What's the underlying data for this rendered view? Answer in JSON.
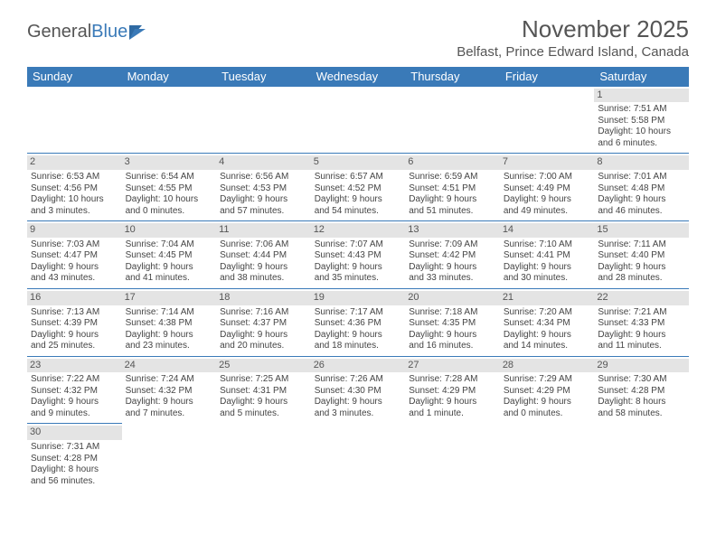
{
  "brand": {
    "part1": "General",
    "part2": "Blue"
  },
  "title": "November 2025",
  "location": "Belfast, Prince Edward Island, Canada",
  "colors": {
    "header_bg": "#3a7ab8",
    "header_text": "#ffffff",
    "daynum_bg": "#e4e4e4",
    "border": "#3a7ab8",
    "text": "#444444",
    "background": "#ffffff"
  },
  "typography": {
    "title_fontsize": 26,
    "location_fontsize": 15,
    "header_fontsize": 13,
    "daynum_fontsize": 11,
    "cell_fontsize": 10
  },
  "weekdays": [
    "Sunday",
    "Monday",
    "Tuesday",
    "Wednesday",
    "Thursday",
    "Friday",
    "Saturday"
  ],
  "weeks": [
    [
      null,
      null,
      null,
      null,
      null,
      null,
      {
        "day": "1",
        "sunrise": "Sunrise: 7:51 AM",
        "sunset": "Sunset: 5:58 PM",
        "daylight1": "Daylight: 10 hours",
        "daylight2": "and 6 minutes."
      }
    ],
    [
      {
        "day": "2",
        "sunrise": "Sunrise: 6:53 AM",
        "sunset": "Sunset: 4:56 PM",
        "daylight1": "Daylight: 10 hours",
        "daylight2": "and 3 minutes."
      },
      {
        "day": "3",
        "sunrise": "Sunrise: 6:54 AM",
        "sunset": "Sunset: 4:55 PM",
        "daylight1": "Daylight: 10 hours",
        "daylight2": "and 0 minutes."
      },
      {
        "day": "4",
        "sunrise": "Sunrise: 6:56 AM",
        "sunset": "Sunset: 4:53 PM",
        "daylight1": "Daylight: 9 hours",
        "daylight2": "and 57 minutes."
      },
      {
        "day": "5",
        "sunrise": "Sunrise: 6:57 AM",
        "sunset": "Sunset: 4:52 PM",
        "daylight1": "Daylight: 9 hours",
        "daylight2": "and 54 minutes."
      },
      {
        "day": "6",
        "sunrise": "Sunrise: 6:59 AM",
        "sunset": "Sunset: 4:51 PM",
        "daylight1": "Daylight: 9 hours",
        "daylight2": "and 51 minutes."
      },
      {
        "day": "7",
        "sunrise": "Sunrise: 7:00 AM",
        "sunset": "Sunset: 4:49 PM",
        "daylight1": "Daylight: 9 hours",
        "daylight2": "and 49 minutes."
      },
      {
        "day": "8",
        "sunrise": "Sunrise: 7:01 AM",
        "sunset": "Sunset: 4:48 PM",
        "daylight1": "Daylight: 9 hours",
        "daylight2": "and 46 minutes."
      }
    ],
    [
      {
        "day": "9",
        "sunrise": "Sunrise: 7:03 AM",
        "sunset": "Sunset: 4:47 PM",
        "daylight1": "Daylight: 9 hours",
        "daylight2": "and 43 minutes."
      },
      {
        "day": "10",
        "sunrise": "Sunrise: 7:04 AM",
        "sunset": "Sunset: 4:45 PM",
        "daylight1": "Daylight: 9 hours",
        "daylight2": "and 41 minutes."
      },
      {
        "day": "11",
        "sunrise": "Sunrise: 7:06 AM",
        "sunset": "Sunset: 4:44 PM",
        "daylight1": "Daylight: 9 hours",
        "daylight2": "and 38 minutes."
      },
      {
        "day": "12",
        "sunrise": "Sunrise: 7:07 AM",
        "sunset": "Sunset: 4:43 PM",
        "daylight1": "Daylight: 9 hours",
        "daylight2": "and 35 minutes."
      },
      {
        "day": "13",
        "sunrise": "Sunrise: 7:09 AM",
        "sunset": "Sunset: 4:42 PM",
        "daylight1": "Daylight: 9 hours",
        "daylight2": "and 33 minutes."
      },
      {
        "day": "14",
        "sunrise": "Sunrise: 7:10 AM",
        "sunset": "Sunset: 4:41 PM",
        "daylight1": "Daylight: 9 hours",
        "daylight2": "and 30 minutes."
      },
      {
        "day": "15",
        "sunrise": "Sunrise: 7:11 AM",
        "sunset": "Sunset: 4:40 PM",
        "daylight1": "Daylight: 9 hours",
        "daylight2": "and 28 minutes."
      }
    ],
    [
      {
        "day": "16",
        "sunrise": "Sunrise: 7:13 AM",
        "sunset": "Sunset: 4:39 PM",
        "daylight1": "Daylight: 9 hours",
        "daylight2": "and 25 minutes."
      },
      {
        "day": "17",
        "sunrise": "Sunrise: 7:14 AM",
        "sunset": "Sunset: 4:38 PM",
        "daylight1": "Daylight: 9 hours",
        "daylight2": "and 23 minutes."
      },
      {
        "day": "18",
        "sunrise": "Sunrise: 7:16 AM",
        "sunset": "Sunset: 4:37 PM",
        "daylight1": "Daylight: 9 hours",
        "daylight2": "and 20 minutes."
      },
      {
        "day": "19",
        "sunrise": "Sunrise: 7:17 AM",
        "sunset": "Sunset: 4:36 PM",
        "daylight1": "Daylight: 9 hours",
        "daylight2": "and 18 minutes."
      },
      {
        "day": "20",
        "sunrise": "Sunrise: 7:18 AM",
        "sunset": "Sunset: 4:35 PM",
        "daylight1": "Daylight: 9 hours",
        "daylight2": "and 16 minutes."
      },
      {
        "day": "21",
        "sunrise": "Sunrise: 7:20 AM",
        "sunset": "Sunset: 4:34 PM",
        "daylight1": "Daylight: 9 hours",
        "daylight2": "and 14 minutes."
      },
      {
        "day": "22",
        "sunrise": "Sunrise: 7:21 AM",
        "sunset": "Sunset: 4:33 PM",
        "daylight1": "Daylight: 9 hours",
        "daylight2": "and 11 minutes."
      }
    ],
    [
      {
        "day": "23",
        "sunrise": "Sunrise: 7:22 AM",
        "sunset": "Sunset: 4:32 PM",
        "daylight1": "Daylight: 9 hours",
        "daylight2": "and 9 minutes."
      },
      {
        "day": "24",
        "sunrise": "Sunrise: 7:24 AM",
        "sunset": "Sunset: 4:32 PM",
        "daylight1": "Daylight: 9 hours",
        "daylight2": "and 7 minutes."
      },
      {
        "day": "25",
        "sunrise": "Sunrise: 7:25 AM",
        "sunset": "Sunset: 4:31 PM",
        "daylight1": "Daylight: 9 hours",
        "daylight2": "and 5 minutes."
      },
      {
        "day": "26",
        "sunrise": "Sunrise: 7:26 AM",
        "sunset": "Sunset: 4:30 PM",
        "daylight1": "Daylight: 9 hours",
        "daylight2": "and 3 minutes."
      },
      {
        "day": "27",
        "sunrise": "Sunrise: 7:28 AM",
        "sunset": "Sunset: 4:29 PM",
        "daylight1": "Daylight: 9 hours",
        "daylight2": "and 1 minute."
      },
      {
        "day": "28",
        "sunrise": "Sunrise: 7:29 AM",
        "sunset": "Sunset: 4:29 PM",
        "daylight1": "Daylight: 9 hours",
        "daylight2": "and 0 minutes."
      },
      {
        "day": "29",
        "sunrise": "Sunrise: 7:30 AM",
        "sunset": "Sunset: 4:28 PM",
        "daylight1": "Daylight: 8 hours",
        "daylight2": "and 58 minutes."
      }
    ],
    [
      {
        "day": "30",
        "sunrise": "Sunrise: 7:31 AM",
        "sunset": "Sunset: 4:28 PM",
        "daylight1": "Daylight: 8 hours",
        "daylight2": "and 56 minutes."
      },
      null,
      null,
      null,
      null,
      null,
      null
    ]
  ]
}
